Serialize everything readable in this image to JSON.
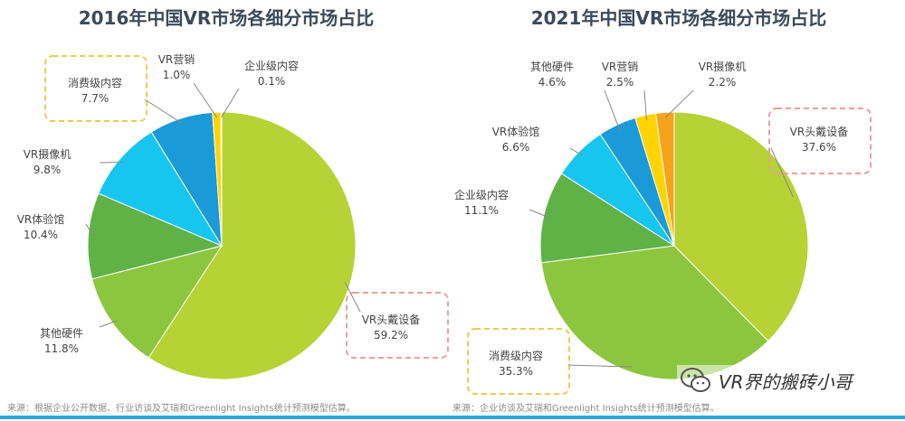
{
  "chart_data": [
    {
      "type": "pie",
      "title": "2016年中国VR市场各细分市场占比",
      "slices": [
        {
          "label": "VR头戴设备",
          "value": 59.2,
          "value_text": "59.2%",
          "color": "#b6d234",
          "boxed": true
        },
        {
          "label": "其他硬件",
          "value": 11.8,
          "value_text": "11.8%",
          "color": "#8cc63f"
        },
        {
          "label": "VR体验馆",
          "value": 10.4,
          "value_text": "10.4%",
          "color": "#5fb246"
        },
        {
          "label": "VR摄像机",
          "value": 9.8,
          "value_text": "9.8%",
          "color": "#16c6ef"
        },
        {
          "label": "消费级内容",
          "value": 7.7,
          "value_text": "7.7%",
          "color": "#1a9ad6",
          "boxed": true
        },
        {
          "label": "VR营销",
          "value": 1.0,
          "value_text": "1.0%",
          "color": "#ffd400"
        },
        {
          "label": "企业级内容",
          "value": 0.1,
          "value_text": "0.1%",
          "color": "#f7a21b"
        }
      ]
    },
    {
      "type": "pie",
      "title": "2021年中国VR市场各细分市场占比",
      "slices": [
        {
          "label": "VR头戴设备",
          "value": 37.6,
          "value_text": "37.6%",
          "color": "#b6d234",
          "boxed": true
        },
        {
          "label": "消费级内容",
          "value": 35.3,
          "value_text": "35.3%",
          "color": "#8cc63f",
          "boxed": true
        },
        {
          "label": "企业级内容",
          "value": 11.1,
          "value_text": "11.1%",
          "color": "#5fb246"
        },
        {
          "label": "VR体验馆",
          "value": 6.6,
          "value_text": "6.6%",
          "color": "#16c6ef"
        },
        {
          "label": "其他硬件",
          "value": 4.6,
          "value_text": "4.6%",
          "color": "#1a9ad6"
        },
        {
          "label": "VR营销",
          "value": 2.5,
          "value_text": "2.5%",
          "color": "#ffd400"
        },
        {
          "label": "VR摄像机",
          "value": 2.2,
          "value_text": "2.2%",
          "color": "#f7a21b"
        }
      ]
    }
  ],
  "sources": {
    "left": "来源：根据企业公开数据、行业访谈及艾瑞和Greenlight Insights统计预测模型估算。",
    "right": "来源：企业访谈及艾瑞和Greenlight Insights统计预测模型估算。"
  },
  "watermark": "VR界的搬砖小哥",
  "colors": {
    "title": "#3b4a5a",
    "label": "#444444",
    "leader": "#888888",
    "box_yellow": "#f2c94c",
    "box_pink": "#e8a0a0",
    "accent_bar": "#24a9e1"
  }
}
